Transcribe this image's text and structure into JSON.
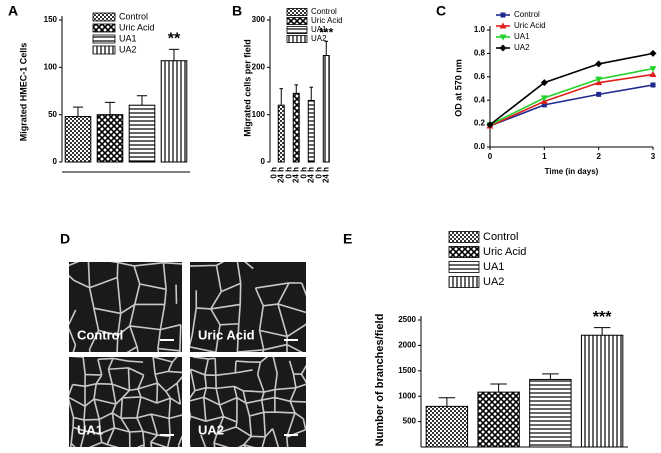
{
  "chart_data": [
    {
      "type": "bar",
      "panel": "A",
      "ylabel": "Migrated HMEC-1 Cells",
      "categories": [
        "Control",
        "Uric Acid",
        "UA1",
        "UA2"
      ],
      "patterns": [
        "dots",
        "cross",
        "hlines",
        "vlines"
      ],
      "values": [
        48,
        50,
        60,
        107
      ],
      "errors": [
        10,
        13,
        10,
        12
      ],
      "annotation": "**",
      "ylim": [
        0,
        150
      ],
      "yticks": [
        0,
        50,
        100,
        150
      ]
    },
    {
      "type": "groupedbar",
      "panel": "B",
      "ylabel": "Migrated cells per field",
      "groups": [
        "0 h",
        "24 h"
      ],
      "series": [
        {
          "name": "Control",
          "pattern": "dots",
          "values": [
            0,
            120
          ],
          "errors": [
            null,
            35
          ]
        },
        {
          "name": "Uric Acid",
          "pattern": "cross",
          "values": [
            0,
            145
          ],
          "errors": [
            null,
            18
          ]
        },
        {
          "name": "UA1",
          "pattern": "hlines",
          "values": [
            0,
            130
          ],
          "errors": [
            null,
            28
          ]
        },
        {
          "name": "UA2",
          "pattern": "vlines",
          "values": [
            0,
            225
          ],
          "errors": [
            null,
            30
          ]
        }
      ],
      "annotation": "***",
      "ylim": [
        0,
        300
      ],
      "yticks": [
        0,
        100,
        200,
        300
      ]
    },
    {
      "type": "line",
      "panel": "C",
      "xlabel": "Time (in days)",
      "ylabel": "OD at 570 nm",
      "x": [
        0,
        1,
        2,
        3
      ],
      "series": [
        {
          "name": "Control",
          "color": "#1f2a8f",
          "marker": "square",
          "values": [
            0.18,
            0.36,
            0.45,
            0.53
          ]
        },
        {
          "name": "Uric Acid",
          "color": "#e0201b",
          "marker": "triangle-up",
          "values": [
            0.18,
            0.39,
            0.55,
            0.62
          ]
        },
        {
          "name": "UA1",
          "color": "#22d22a",
          "marker": "triangle-down",
          "values": [
            0.19,
            0.42,
            0.58,
            0.67
          ]
        },
        {
          "name": "UA2",
          "color": "#000000",
          "marker": "diamond",
          "values": [
            0.19,
            0.55,
            0.71,
            0.8
          ]
        }
      ],
      "xlim": [
        0,
        3
      ],
      "xticks": [
        0,
        1,
        2,
        3
      ],
      "ylim": [
        0,
        1
      ],
      "yticks": [
        {
          "value": 0,
          "label": "0.0"
        },
        0.2,
        0.4,
        0.6,
        0.8,
        {
          "value": 1,
          "label": "1.0"
        }
      ]
    },
    {
      "type": "bar",
      "panel": "E",
      "ylabel": "Number of branches/field",
      "categories": [
        "Control",
        "Uric Acid",
        "UA1",
        "UA2"
      ],
      "patterns": [
        "dots",
        "cross",
        "hlines",
        "vlines"
      ],
      "values": [
        800,
        1080,
        1330,
        2200
      ],
      "errors": [
        170,
        160,
        110,
        150
      ],
      "annotation": "***",
      "ylim": [
        0,
        2500
      ],
      "yticks": [
        500,
        1000,
        1500,
        2000,
        2500
      ]
    }
  ],
  "panel_d": {
    "panel": "D",
    "labels": [
      "Control",
      "Uric Acid",
      "UA1",
      "UA2"
    ]
  }
}
